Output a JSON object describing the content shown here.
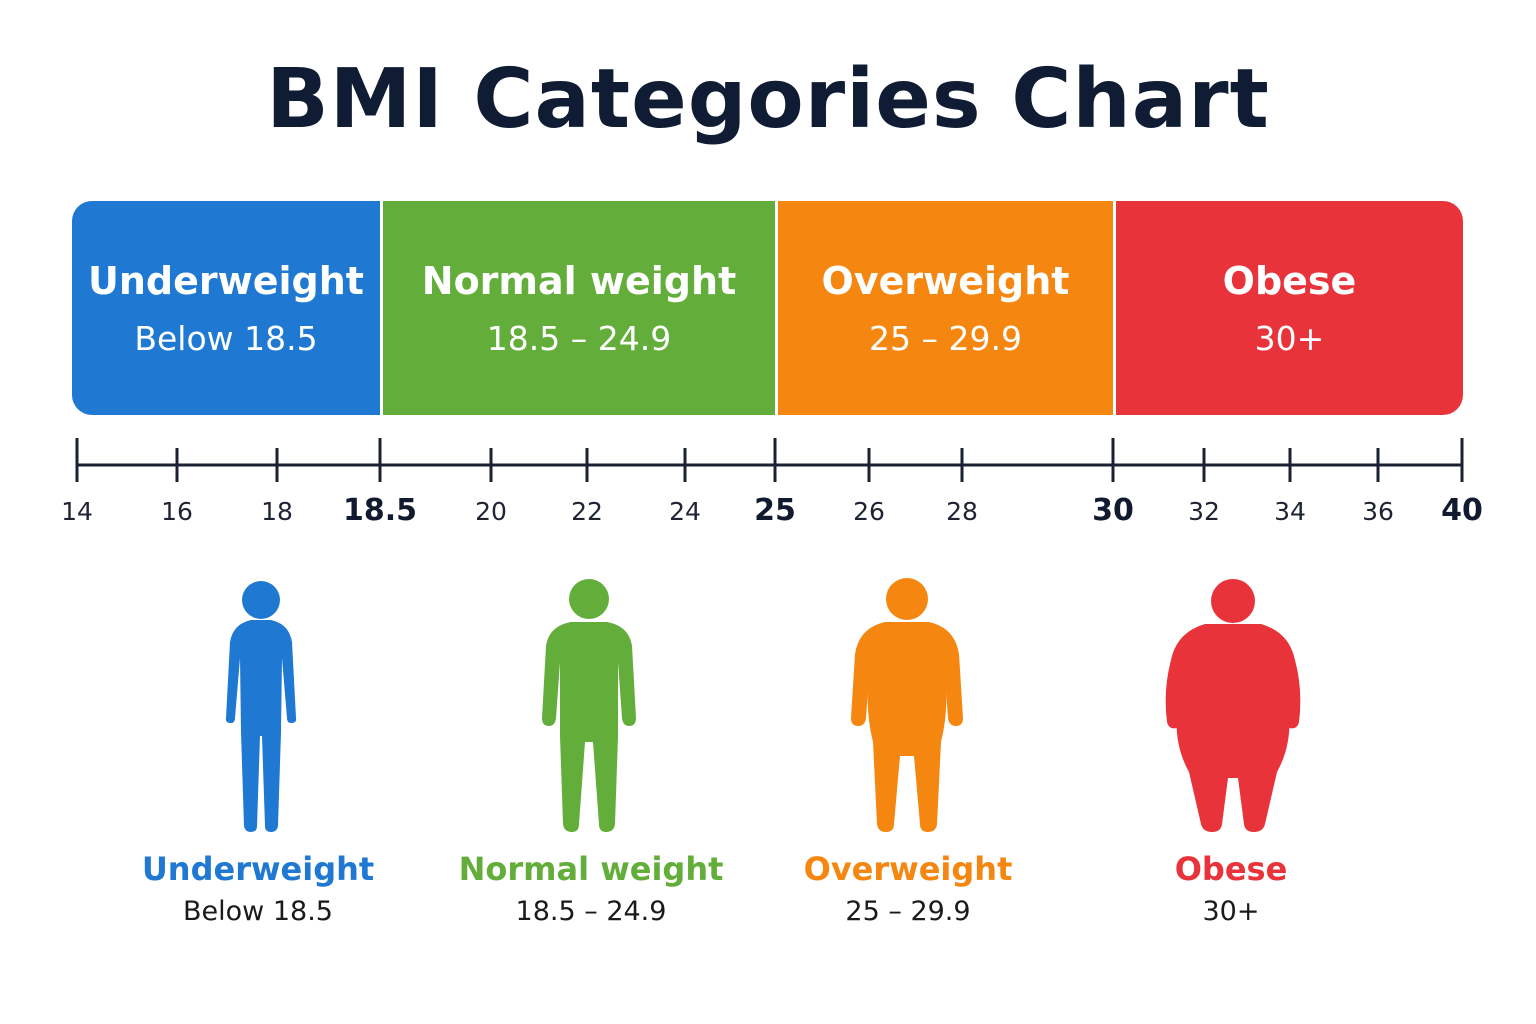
{
  "title": "BMI Categories Chart",
  "chart_data": {
    "type": "bar",
    "title": "BMI Categories Chart",
    "axis": {
      "min": 14,
      "max": 40,
      "ticks": [
        {
          "value": 14,
          "label": "14",
          "major": false
        },
        {
          "value": 16,
          "label": "16",
          "major": false
        },
        {
          "value": 18,
          "label": "18",
          "major": false
        },
        {
          "value": 18.5,
          "label": "18.5",
          "major": true
        },
        {
          "value": 20,
          "label": "20",
          "major": false
        },
        {
          "value": 22,
          "label": "22",
          "major": false
        },
        {
          "value": 24,
          "label": "24",
          "major": false
        },
        {
          "value": 25,
          "label": "25",
          "major": true
        },
        {
          "value": 26,
          "label": "26",
          "major": false
        },
        {
          "value": 28,
          "label": "28",
          "major": false
        },
        {
          "value": 30,
          "label": "30",
          "major": true
        },
        {
          "value": 32,
          "label": "32",
          "major": false
        },
        {
          "value": 34,
          "label": "34",
          "major": false
        },
        {
          "value": 36,
          "label": "36",
          "major": false
        },
        {
          "value": 40,
          "label": "40",
          "major": true
        }
      ]
    },
    "categories": [
      {
        "name": "Underweight",
        "range": "Below 18.5",
        "from": 14,
        "to": 18.5,
        "color": "#1f78d1"
      },
      {
        "name": "Normal weight",
        "range": "18.5 – 24.9",
        "from": 18.5,
        "to": 25,
        "color": "#63ad3a"
      },
      {
        "name": "Overweight",
        "range": "25 – 29.9",
        "from": 25,
        "to": 30,
        "color": "#f5860f"
      },
      {
        "name": "Obese",
        "range": "30+",
        "from": 30,
        "to": 40,
        "color": "#e8333a"
      }
    ]
  },
  "figures": [
    {
      "name": "Underweight",
      "range": "Below 18.5",
      "color": "#1f78d1",
      "icon": "slim-person-icon"
    },
    {
      "name": "Normal weight",
      "range": "18.5 – 24.9",
      "color": "#63ad3a",
      "icon": "normal-person-icon"
    },
    {
      "name": "Overweight",
      "range": "25 – 29.9",
      "color": "#f5860f",
      "icon": "overweight-person-icon"
    },
    {
      "name": "Obese",
      "range": "30+",
      "color": "#e8333a",
      "icon": "obese-person-icon"
    }
  ]
}
